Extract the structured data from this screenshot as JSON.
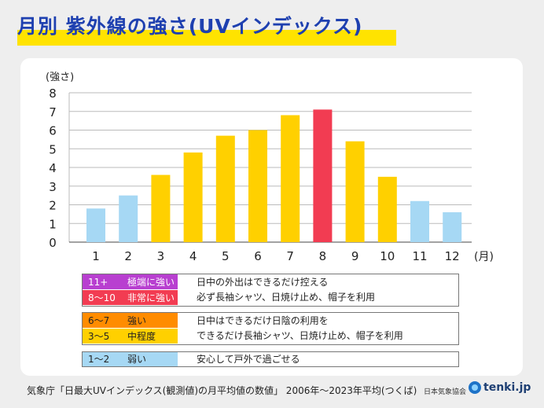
{
  "title": "月別 紫外線の強さ(UVインデックス)",
  "chart_data": {
    "type": "bar",
    "ylabel": "(強さ)",
    "xunit": "(月)",
    "ylim": [
      0,
      8
    ],
    "yticks": [
      0,
      1,
      2,
      3,
      4,
      5,
      6,
      7,
      8
    ],
    "categories": [
      "1",
      "2",
      "3",
      "4",
      "5",
      "6",
      "7",
      "8",
      "9",
      "10",
      "11",
      "12"
    ],
    "values": [
      1.8,
      2.5,
      3.6,
      4.8,
      5.7,
      6.0,
      6.8,
      7.1,
      5.4,
      3.5,
      2.2,
      1.6
    ],
    "bar_colors": [
      "#a6d8f4",
      "#a6d8f4",
      "#ffd000",
      "#ffd000",
      "#ffd000",
      "#ffd000",
      "#ffd000",
      "#f23c52",
      "#ffd000",
      "#ffd000",
      "#a6d8f4",
      "#a6d8f4"
    ],
    "grid": "horizontal"
  },
  "legend": {
    "groups": [
      {
        "rows": [
          {
            "code": "11+",
            "label": "極端に強い",
            "color": "#b83fd0",
            "text_color": "#ffffff"
          },
          {
            "code": "8〜10",
            "label": "非常に強い",
            "color": "#f23c52",
            "text_color": "#ffffff"
          }
        ],
        "advice": [
          "日中の外出はできるだけ控える",
          "必ず長袖シャツ、日焼け止め、帽子を利用"
        ]
      },
      {
        "rows": [
          {
            "code": "6〜7",
            "label": "強い",
            "color": "#ff8c00",
            "text_color": "#222222"
          },
          {
            "code": "3〜5",
            "label": "中程度",
            "color": "#ffd000",
            "text_color": "#222222"
          }
        ],
        "advice": [
          "日中はできるだけ日陰の利用を",
          "できるだけ長袖シャツ、日焼け止め、帽子を利用"
        ]
      },
      {
        "rows": [
          {
            "code": "1〜2",
            "label": "弱い",
            "color": "#a6d8f4",
            "text_color": "#222222"
          }
        ],
        "advice": [
          "安心して戸外で過ごせる"
        ]
      }
    ]
  },
  "footer": "気象庁「日最大UVインデックス(観測値)の月平均値の数値」 2006年〜2023年平均(つくば)",
  "org": "日本気象協会",
  "logo": "tenki.jp"
}
